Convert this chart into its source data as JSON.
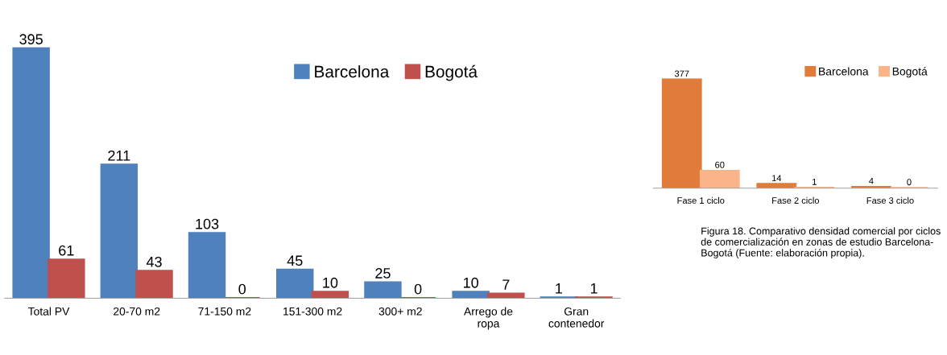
{
  "chart_data": [
    {
      "type": "bar",
      "categories": [
        "Total PV",
        "20-70 m2",
        "71-150 m2",
        "151-300 m2",
        "300+ m2",
        "Arrego de\nropa",
        "Gran\ncontenedor"
      ],
      "series": [
        {
          "name": "Barcelona",
          "color": "#4f81bd",
          "values": [
            395,
            211,
            103,
            45,
            25,
            10,
            1
          ]
        },
        {
          "name": "Bogotá",
          "color": "#c0504d",
          "values": [
            61,
            43,
            0,
            10,
            0,
            7,
            1
          ]
        }
      ],
      "data_labels": true,
      "legend": "top",
      "grid": false
    },
    {
      "type": "bar",
      "categories": [
        "Fase 1 ciclo",
        "Fase 2 ciclo",
        "Fase 3 ciclo"
      ],
      "series": [
        {
          "name": "Barcelona",
          "color": "#e07b39",
          "values": [
            377,
            14,
            4
          ]
        },
        {
          "name": "Bogotá",
          "color": "#f9b48a",
          "values": [
            60,
            1,
            0
          ]
        }
      ],
      "data_labels": true,
      "legend": "top right",
      "grid": false,
      "annotations": [
        "Figura 18. Comparativo densidad comercial por ciclos de comercialización en zonas de estudio Barcelona- Bogotá (Fuente: elaboración propia)."
      ]
    }
  ]
}
